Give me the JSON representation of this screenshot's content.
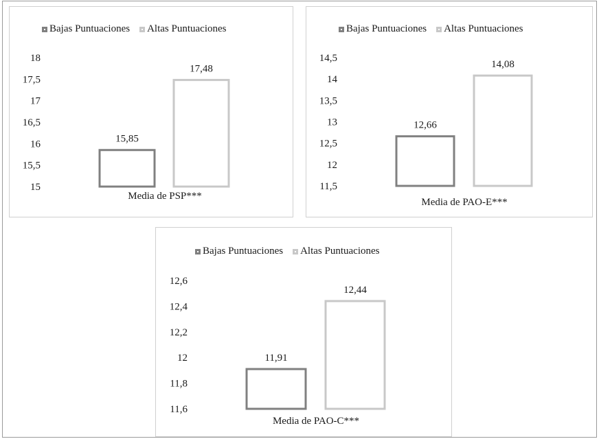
{
  "legend": {
    "low": "Bajas Puntuaciones",
    "high": "Altas Puntuaciones"
  },
  "colors": {
    "low": "#808080",
    "high": "#c8c8c8"
  },
  "chart_data": [
    {
      "type": "bar",
      "xlabel": "Media de PSP***",
      "categories": [
        "Media de PSP***"
      ],
      "series": [
        {
          "name": "Bajas Puntuaciones",
          "values": [
            15.85
          ],
          "label": "15,85"
        },
        {
          "name": "Altas Puntuaciones",
          "values": [
            17.48
          ],
          "label": "17,48"
        }
      ],
      "ylim": [
        15,
        18
      ],
      "yticks": [
        "15",
        "15,5",
        "16",
        "16,5",
        "17",
        "17,5",
        "18"
      ],
      "legend_position": "top",
      "grid": false
    },
    {
      "type": "bar",
      "xlabel": "Media de PAO-E***",
      "categories": [
        "Media de PAO-E***"
      ],
      "series": [
        {
          "name": "Bajas Puntuaciones",
          "values": [
            12.66
          ],
          "label": "12,66"
        },
        {
          "name": "Altas Puntuaciones",
          "values": [
            14.08
          ],
          "label": "14,08"
        }
      ],
      "ylim": [
        11.5,
        14.5
      ],
      "yticks": [
        "11,5",
        "12",
        "12,5",
        "13",
        "13,5",
        "14",
        "14,5"
      ],
      "legend_position": "top",
      "grid": false
    },
    {
      "type": "bar",
      "xlabel": "Media de PAO-C***",
      "categories": [
        "Media de PAO-C***"
      ],
      "series": [
        {
          "name": "Bajas Puntuaciones",
          "values": [
            11.91
          ],
          "label": "11,91"
        },
        {
          "name": "Altas Puntuaciones",
          "values": [
            12.44
          ],
          "label": "12,44"
        }
      ],
      "ylim": [
        11.6,
        12.6
      ],
      "yticks": [
        "11,6",
        "11,8",
        "12",
        "12,2",
        "12,4",
        "12,6"
      ],
      "legend_position": "top",
      "grid": false
    }
  ]
}
